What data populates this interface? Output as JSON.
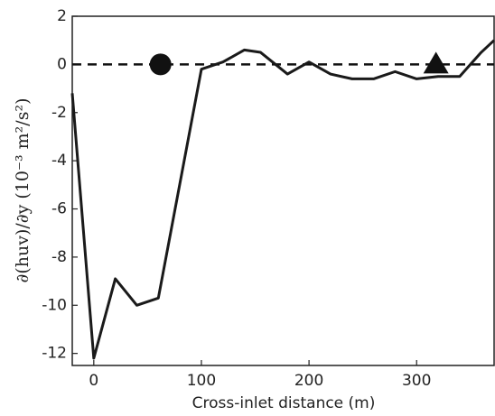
{
  "chart_data": {
    "type": "line",
    "xlabel": "Cross-inlet distance (m)",
    "ylabel": "∂(huv)/∂y  (10⁻³ m²/s²)",
    "x": [
      -20,
      0,
      20,
      40,
      60,
      100,
      120,
      140,
      155,
      180,
      200,
      220,
      240,
      260,
      280,
      300,
      320,
      340,
      360,
      372
    ],
    "series": [
      {
        "color": "#1a1a1a",
        "values": [
          -1.2,
          -12.2,
          -8.9,
          -10,
          -9.7,
          -0.2,
          0.1,
          0.6,
          0.5,
          -0.4,
          0.1,
          -0.4,
          -0.6,
          -0.6,
          -0.3,
          -0.6,
          -0.5,
          -0.5,
          0.5,
          1.0
        ]
      }
    ],
    "reference_line": 0,
    "markers": [
      {
        "shape": "circle",
        "x": 62,
        "y": 0
      },
      {
        "shape": "triangle",
        "x": 318,
        "y": 0
      }
    ],
    "xlim": [
      -20,
      372
    ],
    "ylim": [
      -12.5,
      2
    ],
    "xticks": [
      0,
      100,
      200,
      300
    ],
    "yticks": [
      2,
      0,
      -2,
      -4,
      -6,
      -8,
      -10,
      -12
    ]
  }
}
